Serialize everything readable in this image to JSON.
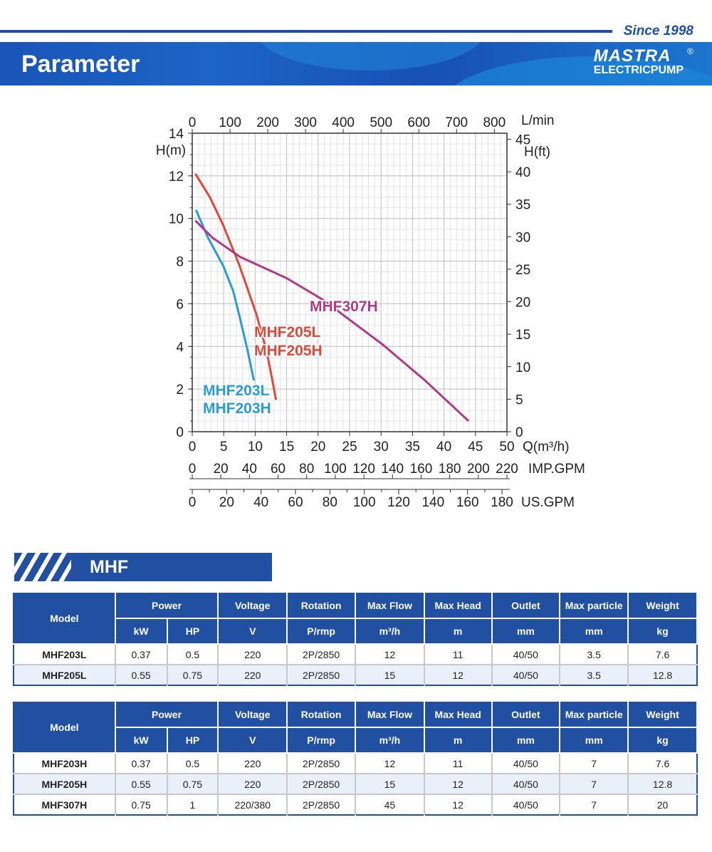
{
  "header": {
    "since": "Since 1998",
    "title": "Parameter",
    "logo_mark": "MASTRA",
    "logo_sub": "ELECTRICPUMP",
    "logo_reg": "®"
  },
  "chart_data": {
    "type": "line",
    "xlabel": "Q(m³/h)",
    "xlim": [
      0,
      50
    ],
    "xticks": [
      "0",
      "5",
      "10",
      "15",
      "20",
      "25",
      "30",
      "35",
      "40",
      "45",
      "50"
    ],
    "ylabel": "H(m)",
    "ylim": [
      0,
      14
    ],
    "yticks": [
      "0",
      "2",
      "4",
      "6",
      "8",
      "10",
      "12",
      "14"
    ],
    "top_axis": {
      "label": "L/min",
      "ticks": [
        "0",
        "100",
        "200",
        "300",
        "400",
        "500",
        "600",
        "700",
        "800"
      ]
    },
    "right_axis": {
      "label": "H(ft)",
      "ticks": [
        "0",
        "5",
        "10",
        "15",
        "20",
        "25",
        "30",
        "35",
        "40",
        "45"
      ]
    },
    "imp_axis": {
      "label": "IMP.GPM",
      "ticks": [
        "0",
        "20",
        "40",
        "60",
        "80",
        "100",
        "120",
        "140",
        "160",
        "180",
        "200",
        "220"
      ]
    },
    "us_axis": {
      "label": "US.GPM",
      "ticks": [
        "0",
        "20",
        "40",
        "60",
        "80",
        "100",
        "120",
        "140",
        "160",
        "180"
      ]
    },
    "grid": true,
    "series": [
      {
        "name": "MHF203L MHF203H",
        "labels": [
          "MHF203L",
          "MHF203H"
        ],
        "color": "#2a9ad8",
        "x": [
          0.6,
          2.5,
          4.9,
          6.5,
          7.6,
          8.8,
          9.8
        ],
        "y": [
          10.4,
          9.1,
          7.8,
          6.6,
          5.3,
          3.8,
          2.4
        ]
      },
      {
        "name": "MHF205L MHF205H",
        "labels": [
          "MHF205L",
          "MHF205H"
        ],
        "color": "#e0483a",
        "x": [
          0.5,
          2.8,
          4.9,
          7.5,
          10.2,
          11.8,
          12.8,
          13.3
        ],
        "y": [
          12.1,
          11.0,
          9.7,
          7.8,
          5.5,
          3.8,
          2.3,
          1.5
        ]
      },
      {
        "name": "MHF307H",
        "labels": [
          "MHF307H"
        ],
        "color": "#b03a8a",
        "x": [
          0.5,
          3.2,
          7.6,
          15,
          20.7,
          30.2,
          37,
          43.9
        ],
        "y": [
          9.9,
          9.1,
          8.2,
          7.2,
          6.2,
          4.1,
          2.4,
          0.5
        ]
      }
    ]
  },
  "section": {
    "title": "MHF"
  },
  "tables": [
    {
      "header1": [
        "Model",
        "Power",
        "Voltage",
        "Rotation",
        "Max Flow",
        "Max Head",
        "Outlet",
        "Max particle",
        "Weight"
      ],
      "header2": [
        "kW",
        "HP",
        "V",
        "P/rmp",
        "m³/h",
        "m",
        "mm",
        "mm",
        "kg"
      ],
      "rows": [
        [
          "MHF203L",
          "0.37",
          "0.5",
          "220",
          "2P/2850",
          "12",
          "11",
          "40/50",
          "3.5",
          "7.6"
        ],
        [
          "MHF205L",
          "0.55",
          "0.75",
          "220",
          "2P/2850",
          "15",
          "12",
          "40/50",
          "3.5",
          "12.8"
        ]
      ]
    },
    {
      "header1": [
        "Model",
        "Power",
        "Voltage",
        "Rotation",
        "Max Flow",
        "Max Head",
        "Outlet",
        "Max particle",
        "Weight"
      ],
      "header2": [
        "kW",
        "HP",
        "V",
        "P/rmp",
        "m³/h",
        "m",
        "mm",
        "mm",
        "kg"
      ],
      "rows": [
        [
          "MHF203H",
          "0.37",
          "0.5",
          "220",
          "2P/2850",
          "12",
          "11",
          "40/50",
          "7",
          "7.6"
        ],
        [
          "MHF205H",
          "0.55",
          "0.75",
          "220",
          "2P/2850",
          "15",
          "12",
          "40/50",
          "7",
          "12.8"
        ],
        [
          "MHF307H",
          "0.75",
          "1",
          "220/380",
          "2P/2850",
          "45",
          "12",
          "40/50",
          "7",
          "20"
        ]
      ]
    }
  ]
}
